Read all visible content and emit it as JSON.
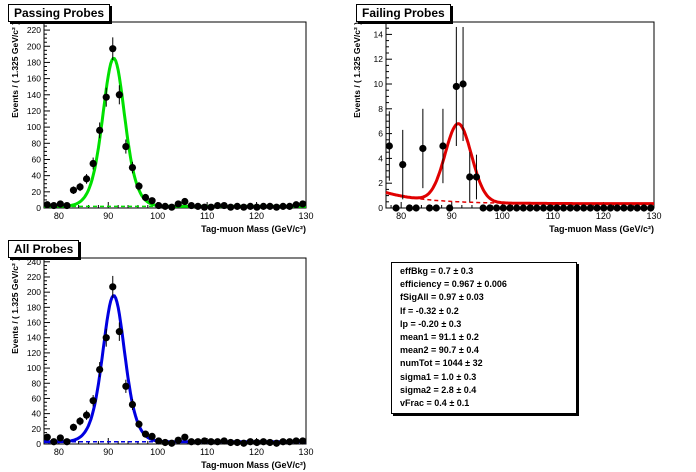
{
  "chart_data": [
    {
      "type": "scatter",
      "title": "Passing Probes",
      "xlabel": "Tag-muon Mass (GeV/c²)",
      "ylabel": "Events / ( 1.325 GeV/c² )",
      "xlim": [
        77,
        130
      ],
      "ylim": [
        0,
        230
      ],
      "xticks": [
        80,
        90,
        100,
        110,
        120,
        130
      ],
      "yticks": [
        0,
        20,
        40,
        60,
        80,
        100,
        120,
        140,
        160,
        180,
        200,
        220
      ],
      "fit_color": "#00e000",
      "series": [
        {
          "x": [
            77.66,
            78.99,
            80.31,
            81.64,
            82.96,
            84.29,
            85.61,
            86.94,
            88.26,
            89.59,
            90.91,
            92.24,
            93.56,
            94.89,
            96.21,
            97.54,
            98.86,
            100.19,
            101.51,
            102.84,
            104.16,
            105.49,
            106.81,
            108.14,
            109.46,
            110.79,
            112.11,
            113.44,
            114.76,
            116.09,
            117.41,
            118.74,
            120.06,
            121.39,
            122.71,
            124.04,
            125.36,
            126.69,
            128.01,
            129.34
          ],
          "y": [
            4,
            3,
            5,
            3,
            22,
            26,
            36,
            55,
            96,
            137,
            197,
            140,
            76,
            50,
            27,
            13,
            9,
            3,
            2,
            1,
            5,
            8,
            3,
            2,
            1,
            1,
            3,
            3,
            1,
            2,
            1,
            2,
            1,
            2,
            2,
            1,
            2,
            2,
            4,
            5
          ],
          "err": [
            2.0,
            1.7,
            2.2,
            1.7,
            4.7,
            5.1,
            6.0,
            7.4,
            9.8,
            11.7,
            14.0,
            11.8,
            8.7,
            7.1,
            5.2,
            3.6,
            3.0,
            1.7,
            1.4,
            1.0,
            2.2,
            2.8,
            1.7,
            1.4,
            1.0,
            1.0,
            1.7,
            1.7,
            1.0,
            1.4,
            1.0,
            1.4,
            1.0,
            1.4,
            1.4,
            1.0,
            1.4,
            1.4,
            2.0,
            2.2
          ]
        }
      ]
    },
    {
      "type": "scatter",
      "title": "Failing Probes",
      "xlabel": "Tag-muon Mass (GeV/c²)",
      "ylabel": "Events / ( 1.325 GeV/c² )",
      "xlim": [
        77,
        130
      ],
      "ylim": [
        0,
        15
      ],
      "xticks": [
        80,
        90,
        100,
        110,
        120,
        130
      ],
      "yticks": [
        0,
        2,
        4,
        6,
        8,
        10,
        12,
        14
      ],
      "fit_color": "#e00000",
      "series": [
        {
          "x": [
            77.66,
            78.99,
            80.31,
            81.64,
            82.96,
            84.29,
            85.61,
            86.94,
            88.26,
            89.59,
            90.91,
            92.24,
            93.56,
            94.89,
            96.21,
            97.54,
            98.86,
            100.19,
            101.51,
            102.84,
            104.16,
            105.49,
            106.81,
            108.14,
            109.46,
            110.79,
            112.11,
            113.44,
            114.76,
            116.09,
            117.41,
            118.74,
            120.06,
            121.39,
            122.71,
            124.04,
            125.36,
            126.69,
            128.01,
            129.34
          ],
          "y": [
            5,
            0,
            3.5,
            0,
            0,
            4.8,
            0,
            0,
            5,
            0,
            9.8,
            10,
            2.5,
            2.5,
            0,
            0,
            0,
            0,
            0,
            0,
            0,
            0,
            0,
            0,
            0,
            0,
            0,
            0,
            0,
            0,
            0,
            0,
            0,
            0,
            0,
            0,
            0,
            0,
            0,
            0
          ],
          "err": [
            2.8,
            0,
            2.8,
            0,
            0,
            3.2,
            0,
            0,
            3.0,
            0,
            4.8,
            4.6,
            2.0,
            1.8,
            0,
            0,
            0,
            0,
            0,
            0,
            0,
            0,
            0,
            0,
            0,
            0,
            0,
            0,
            0,
            0,
            0,
            0,
            0,
            0,
            0,
            0,
            0,
            0,
            0,
            0
          ]
        }
      ]
    },
    {
      "type": "scatter",
      "title": "All Probes",
      "xlabel": "Tag-muon Mass (GeV/c²)",
      "ylabel": "Events / ( 1.325 GeV/c² )",
      "xlim": [
        77,
        130
      ],
      "ylim": [
        0,
        245
      ],
      "xticks": [
        80,
        90,
        100,
        110,
        120,
        130
      ],
      "yticks": [
        0,
        20,
        40,
        60,
        80,
        100,
        120,
        140,
        160,
        180,
        200,
        220,
        240
      ],
      "fit_color": "#0000e0",
      "series": [
        {
          "x": [
            77.66,
            78.99,
            80.31,
            81.64,
            82.96,
            84.29,
            85.61,
            86.94,
            88.26,
            89.59,
            90.91,
            92.24,
            93.56,
            94.89,
            96.21,
            97.54,
            98.86,
            100.19,
            101.51,
            102.84,
            104.16,
            105.49,
            106.81,
            108.14,
            109.46,
            110.79,
            112.11,
            113.44,
            114.76,
            116.09,
            117.41,
            118.74,
            120.06,
            121.39,
            122.71,
            124.04,
            125.36,
            126.69,
            128.01,
            129.34
          ],
          "y": [
            9,
            3,
            8,
            3,
            22,
            30,
            38,
            57,
            98,
            140,
            207,
            148,
            76,
            52,
            26,
            13,
            10,
            4,
            2,
            1,
            5,
            9,
            3,
            3,
            4,
            3,
            3,
            4,
            2,
            2,
            1,
            3,
            2,
            3,
            2,
            1,
            3,
            3,
            4,
            4
          ],
          "err": [
            3.0,
            1.7,
            2.8,
            1.7,
            4.7,
            5.5,
            6.2,
            7.5,
            9.9,
            11.8,
            14.4,
            12.2,
            8.7,
            7.2,
            5.1,
            3.6,
            3.2,
            2.0,
            1.4,
            1.0,
            2.2,
            3.0,
            1.7,
            1.7,
            2.0,
            1.7,
            1.7,
            2.0,
            1.4,
            1.4,
            1.0,
            1.7,
            1.4,
            1.7,
            1.4,
            1.0,
            1.7,
            1.7,
            2.0,
            2.0
          ]
        }
      ]
    }
  ],
  "fit_params": [
    {
      "label": "effBkg =",
      "value": "0.7",
      "pm": "±",
      "error": "0.3"
    },
    {
      "label": "efficiency =",
      "value": "0.967",
      "pm": "±",
      "error": "0.006"
    },
    {
      "label": "fSigAll =",
      "value": "0.97",
      "pm": "±",
      "error": "0.03"
    },
    {
      "label": "lf =",
      "value": "-0.32",
      "pm": "±",
      "error": "0.2"
    },
    {
      "label": "lp =",
      "value": "-0.20",
      "pm": "±",
      "error": "0.3"
    },
    {
      "label": "mean1 =",
      "value": "91.1",
      "pm": "±",
      "error": "0.2"
    },
    {
      "label": "mean2 =",
      "value": "90.7",
      "pm": "±",
      "error": "0.4"
    },
    {
      "label": "numTot =",
      "value": "1044",
      "pm": "±",
      "error": "32"
    },
    {
      "label": "sigma1 =",
      "value": "1.0",
      "pm": "±",
      "error": "0.3"
    },
    {
      "label": "sigma2 =",
      "value": "2.8",
      "pm": "±",
      "error": "0.4"
    },
    {
      "label": "vFrac =",
      "value": "0.4",
      "pm": "±",
      "error": "0.1"
    }
  ]
}
